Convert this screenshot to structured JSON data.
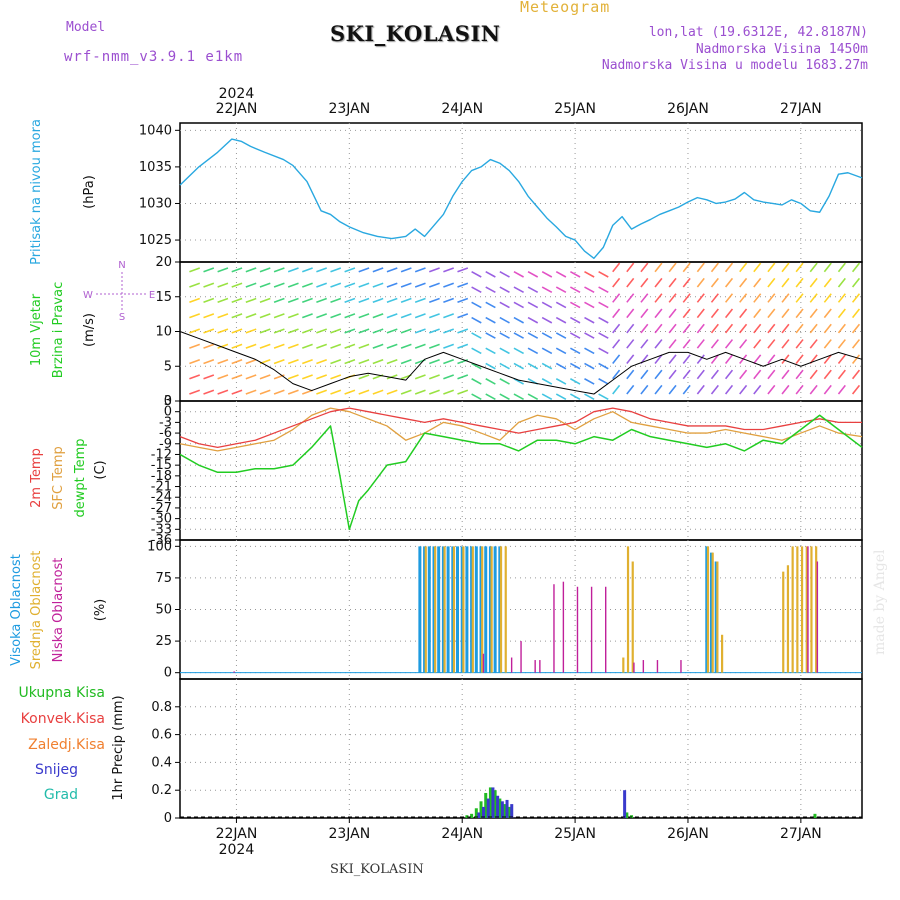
{
  "header": {
    "model_label": "Model",
    "model_name": "wrf-nmm_v3.9.1 e1km",
    "station": "SKI_KOLASIN",
    "product": "Meteogram",
    "coords": "lon,lat (19.6312E, 42.8187N)",
    "elevation": "Nadmorska Visina 1450m",
    "model_elevation": "Nadmorska Visina u modelu 1683.27m",
    "watermark": "made by Angel",
    "footer_station": "SKI_KOLASIN"
  },
  "colors": {
    "pressure": "#29a8e0",
    "t2m": "#e84040",
    "sfc": "#e0a040",
    "dewpt": "#22cc22",
    "high_cloud": "#1e9be0",
    "mid_cloud": "#e0b030",
    "low_cloud": "#c0209a",
    "precip_total": "#22bb22",
    "precip_snow": "#3a3acc",
    "precip_grad": "#22bbaa",
    "grid": "#999999"
  },
  "chart_data": {
    "type": "line",
    "time_axis": {
      "year_label": "2024",
      "ticks": [
        "22JAN",
        "23JAN",
        "24JAN",
        "25JAN",
        "26JAN",
        "27JAN"
      ],
      "start_hour": -12,
      "end_hour": 133
    },
    "panels": {
      "pressure": {
        "ylabel_lines": [
          "Pritisak na nivou mora",
          "(hPa)"
        ],
        "ylim": [
          1022,
          1041
        ],
        "yticks": [
          1025,
          1030,
          1035,
          1040
        ],
        "series": [
          {
            "name": "Pritisak na nivou mora",
            "x": [
              -12,
              -8,
              -4,
              -1,
              1,
              3,
              6,
              10,
              12,
              15,
              18,
              20,
              22,
              24,
              27,
              30,
              33,
              36,
              38,
              40,
              42,
              44,
              46,
              48,
              50,
              52,
              54,
              56,
              58,
              60,
              62,
              64,
              66,
              68,
              70,
              72,
              74,
              76,
              78,
              80,
              82,
              84,
              86,
              88,
              90,
              92,
              94,
              96,
              98,
              100,
              102,
              104,
              106,
              108,
              110,
              112,
              114,
              116,
              118,
              120,
              122,
              124,
              126,
              128,
              130,
              133
            ],
            "y": [
              1032.5,
              1035,
              1037,
              1038.8,
              1038.5,
              1037.8,
              1037,
              1036,
              1035.2,
              1033,
              1029,
              1028.5,
              1027.5,
              1026.8,
              1026,
              1025.5,
              1025.2,
              1025.5,
              1026.5,
              1025.5,
              1027,
              1028.5,
              1031,
              1033,
              1034.5,
              1035,
              1036,
              1035.5,
              1034.5,
              1033,
              1031,
              1029.5,
              1028,
              1026.8,
              1025.5,
              1025,
              1023.5,
              1022.5,
              1024,
              1027,
              1028.2,
              1026.5,
              1027.2,
              1027.8,
              1028.5,
              1029,
              1029.5,
              1030.2,
              1030.8,
              1030.5,
              1030,
              1030.2,
              1030.6,
              1031.5,
              1030.5,
              1030.2,
              1030,
              1029.8,
              1030.5,
              1030,
              1029,
              1028.8,
              1031,
              1034,
              1034.2,
              1033.5
            ]
          }
        ]
      },
      "wind": {
        "ylabel_lines": [
          "10m Vjetar",
          "Brzina i Pravac",
          "(m/s)"
        ],
        "compass_labels": {
          "north": "N",
          "south": "S",
          "west": "W",
          "east": "E"
        },
        "ylim": [
          0,
          20
        ],
        "yticks": [
          0,
          5,
          10,
          15,
          20
        ],
        "series": [
          {
            "name": "10m Vjetar",
            "x": [
              -12,
              -8,
              -4,
              0,
              4,
              8,
              12,
              16,
              20,
              24,
              28,
              32,
              36,
              40,
              44,
              48,
              52,
              56,
              60,
              64,
              68,
              72,
              76,
              80,
              84,
              88,
              92,
              96,
              100,
              104,
              108,
              112,
              116,
              120,
              124,
              128,
              133
            ],
            "y": [
              10,
              9,
              8,
              7,
              6,
              4.5,
              2.5,
              1.5,
              2.5,
              3.5,
              4,
              3.5,
              3,
              6,
              7,
              6,
              5,
              4,
              3,
              2.5,
              2,
              1.5,
              1,
              3,
              5,
              6,
              7,
              7,
              6,
              7,
              6,
              5,
              6,
              5,
              6,
              7,
              6
            ]
          }
        ]
      },
      "temperature": {
        "ylabel_lines": [
          "2m Temp",
          "SFC Temp",
          "dewpt Temp",
          "(C)"
        ],
        "ylim": [
          -36,
          3
        ],
        "yticks": [
          3,
          0,
          -3,
          -6,
          -9,
          -12,
          -15,
          -18,
          -21,
          -24,
          -27,
          -30,
          -33,
          -36
        ],
        "series": [
          {
            "name": "2m Temp",
            "x": [
              -12,
              -8,
              -4,
              0,
              4,
              8,
              12,
              16,
              20,
              24,
              28,
              32,
              36,
              40,
              44,
              48,
              52,
              56,
              60,
              64,
              68,
              72,
              76,
              80,
              84,
              88,
              92,
              96,
              100,
              104,
              108,
              112,
              116,
              120,
              124,
              128,
              133
            ],
            "y": [
              -7,
              -9,
              -10,
              -9,
              -8,
              -6,
              -4,
              -2,
              0,
              1,
              0,
              -1,
              -2,
              -3,
              -2,
              -3,
              -4,
              -5,
              -6,
              -5,
              -4,
              -3,
              0,
              1,
              0,
              -2,
              -3,
              -4,
              -4,
              -4,
              -5,
              -5,
              -4,
              -3,
              -2,
              -3,
              -3
            ]
          },
          {
            "name": "SFC Temp",
            "x": [
              -12,
              -8,
              -4,
              0,
              4,
              8,
              12,
              16,
              20,
              24,
              28,
              32,
              36,
              40,
              44,
              48,
              52,
              56,
              60,
              64,
              68,
              72,
              76,
              80,
              84,
              88,
              92,
              96,
              100,
              104,
              108,
              112,
              116,
              120,
              124,
              128,
              133
            ],
            "y": [
              -9,
              -10,
              -11,
              -10,
              -9,
              -8,
              -5,
              -1,
              1,
              0,
              -2,
              -4,
              -8,
              -6,
              -3,
              -4,
              -6,
              -8,
              -3,
              -1,
              -2,
              -5,
              -2,
              0,
              -3,
              -4,
              -5,
              -6,
              -6,
              -5,
              -6,
              -7,
              -8,
              -6,
              -4,
              -6,
              -7
            ]
          },
          {
            "name": "dewpt Temp",
            "x": [
              -12,
              -8,
              -4,
              0,
              4,
              8,
              12,
              16,
              20,
              22,
              24,
              26,
              28,
              32,
              36,
              40,
              44,
              48,
              52,
              56,
              60,
              64,
              68,
              72,
              76,
              80,
              84,
              88,
              92,
              96,
              100,
              104,
              108,
              112,
              116,
              120,
              124,
              128,
              133
            ],
            "y": [
              -12,
              -15,
              -17,
              -17,
              -16,
              -16,
              -15,
              -10,
              -4,
              -18,
              -33,
              -25,
              -22,
              -15,
              -14,
              -6,
              -7,
              -8,
              -9,
              -9,
              -11,
              -8,
              -8,
              -9,
              -7,
              -8,
              -5,
              -7,
              -8,
              -9,
              -10,
              -9,
              -11,
              -8,
              -9,
              -5,
              -1,
              -5,
              -10
            ]
          }
        ]
      },
      "cloud": {
        "ylabel_lines": [
          "Visoka Oblacnost",
          "Srednja Oblacnost",
          "Niska Oblacnost",
          "(%)"
        ],
        "ylim": [
          -5,
          105
        ],
        "yticks": [
          0,
          25,
          50,
          75,
          100
        ],
        "series": [
          {
            "name": "Visoka Oblacnost",
            "x": [
              39,
              40,
              41,
              42,
              43,
              44,
              45,
              46,
              47,
              48,
              49,
              50,
              51,
              52,
              53,
              54,
              55,
              56,
              100,
              101,
              102
            ],
            "y": [
              100,
              100,
              100,
              100,
              100,
              100,
              100,
              100,
              100,
              100,
              100,
              100,
              100,
              100,
              100,
              100,
              100,
              100,
              100,
              95,
              88
            ]
          },
          {
            "name": "Srednja Oblacnost",
            "x": [
              40,
              42,
              44,
              46,
              48,
              50,
              52,
              54,
              56,
              57,
              82,
              83,
              84,
              100,
              101,
              102,
              103,
              116,
              117,
              118,
              119,
              120,
              121,
              122,
              123
            ],
            "y": [
              100,
              100,
              100,
              100,
              100,
              100,
              100,
              100,
              100,
              100,
              12,
              100,
              88,
              100,
              95,
              88,
              30,
              80,
              85,
              100,
              100,
              100,
              100,
              100,
              100
            ]
          },
          {
            "name": "Niska Oblacnost",
            "x": [
              -1,
              52,
              58,
              60,
              63,
              64,
              67,
              69,
              72,
              75,
              78,
              84,
              86,
              89,
              94,
              121,
              123
            ],
            "y": [
              1,
              15,
              12,
              25,
              10,
              10,
              70,
              72,
              68,
              68,
              68,
              8,
              10,
              10,
              10,
              100,
              88
            ]
          }
        ]
      },
      "precip": {
        "ylabel": "1hr Precip (mm)",
        "ylim": [
          0,
          1.0
        ],
        "yticks": [
          0,
          0.2,
          0.4,
          0.6,
          0.8
        ],
        "legend": [
          "Ukupna Kisa",
          "Konvek.Kisa",
          "Zaledj.Kisa",
          "Snijeg",
          "Grad"
        ],
        "series": [
          {
            "name": "Ukupna Kisa",
            "x": [
              49,
              50,
              51,
              52,
              53,
              54,
              55,
              56,
              57,
              58,
              83,
              84,
              123
            ],
            "y": [
              0.02,
              0.03,
              0.07,
              0.12,
              0.18,
              0.22,
              0.2,
              0.14,
              0.1,
              0.08,
              0.04,
              0.02,
              0.03
            ]
          },
          {
            "name": "Snijeg",
            "x": [
              51,
              52,
              53,
              54,
              55,
              56,
              57,
              58,
              82
            ],
            "y": [
              0.04,
              0.08,
              0.14,
              0.22,
              0.16,
              0.12,
              0.13,
              0.1,
              0.2
            ]
          }
        ]
      }
    }
  }
}
